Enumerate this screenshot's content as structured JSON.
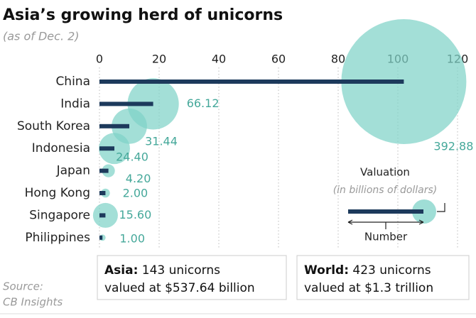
{
  "chart_data": {
    "type": "bar-bubble",
    "title": "Asia’s growing herd of unicorns",
    "subtitle": "(as of Dec. 2)",
    "categories": [
      "China",
      "India",
      "South Korea",
      "Indonesia",
      "Japan",
      "Hong Kong",
      "Singapore",
      "Philippines"
    ],
    "values": [
      102,
      18,
      10,
      5,
      3,
      2,
      2,
      1
    ],
    "valuations": [
      392.88,
      66.12,
      31.44,
      24.4,
      4.2,
      2,
      15.6,
      1
    ],
    "valuation_labels": [
      "392.88",
      "66.12",
      "31.44",
      "24.40",
      "4.20",
      "2.00",
      "15.60",
      "1.00"
    ],
    "bar_color": "#1d3a5c",
    "bubble_color": "#7fd3c8",
    "label_color": "#45a89a",
    "xlim": [
      0,
      120
    ],
    "xticks": [
      0,
      20,
      40,
      60,
      80,
      100,
      120
    ],
    "grid": true,
    "legend": {
      "size_title": "Valuation",
      "size_unit": "(in billions of dollars)",
      "bar_title": "Number"
    },
    "boxes": [
      {
        "label": "Asia:",
        "line1": "143 unicorns",
        "line2": "valued at $537.64 billion"
      },
      {
        "label": "World:",
        "line1": "423 unicorns",
        "line2": "valued at $1.3 trillion"
      }
    ],
    "source": [
      "Source:",
      "CB Insights"
    ]
  }
}
